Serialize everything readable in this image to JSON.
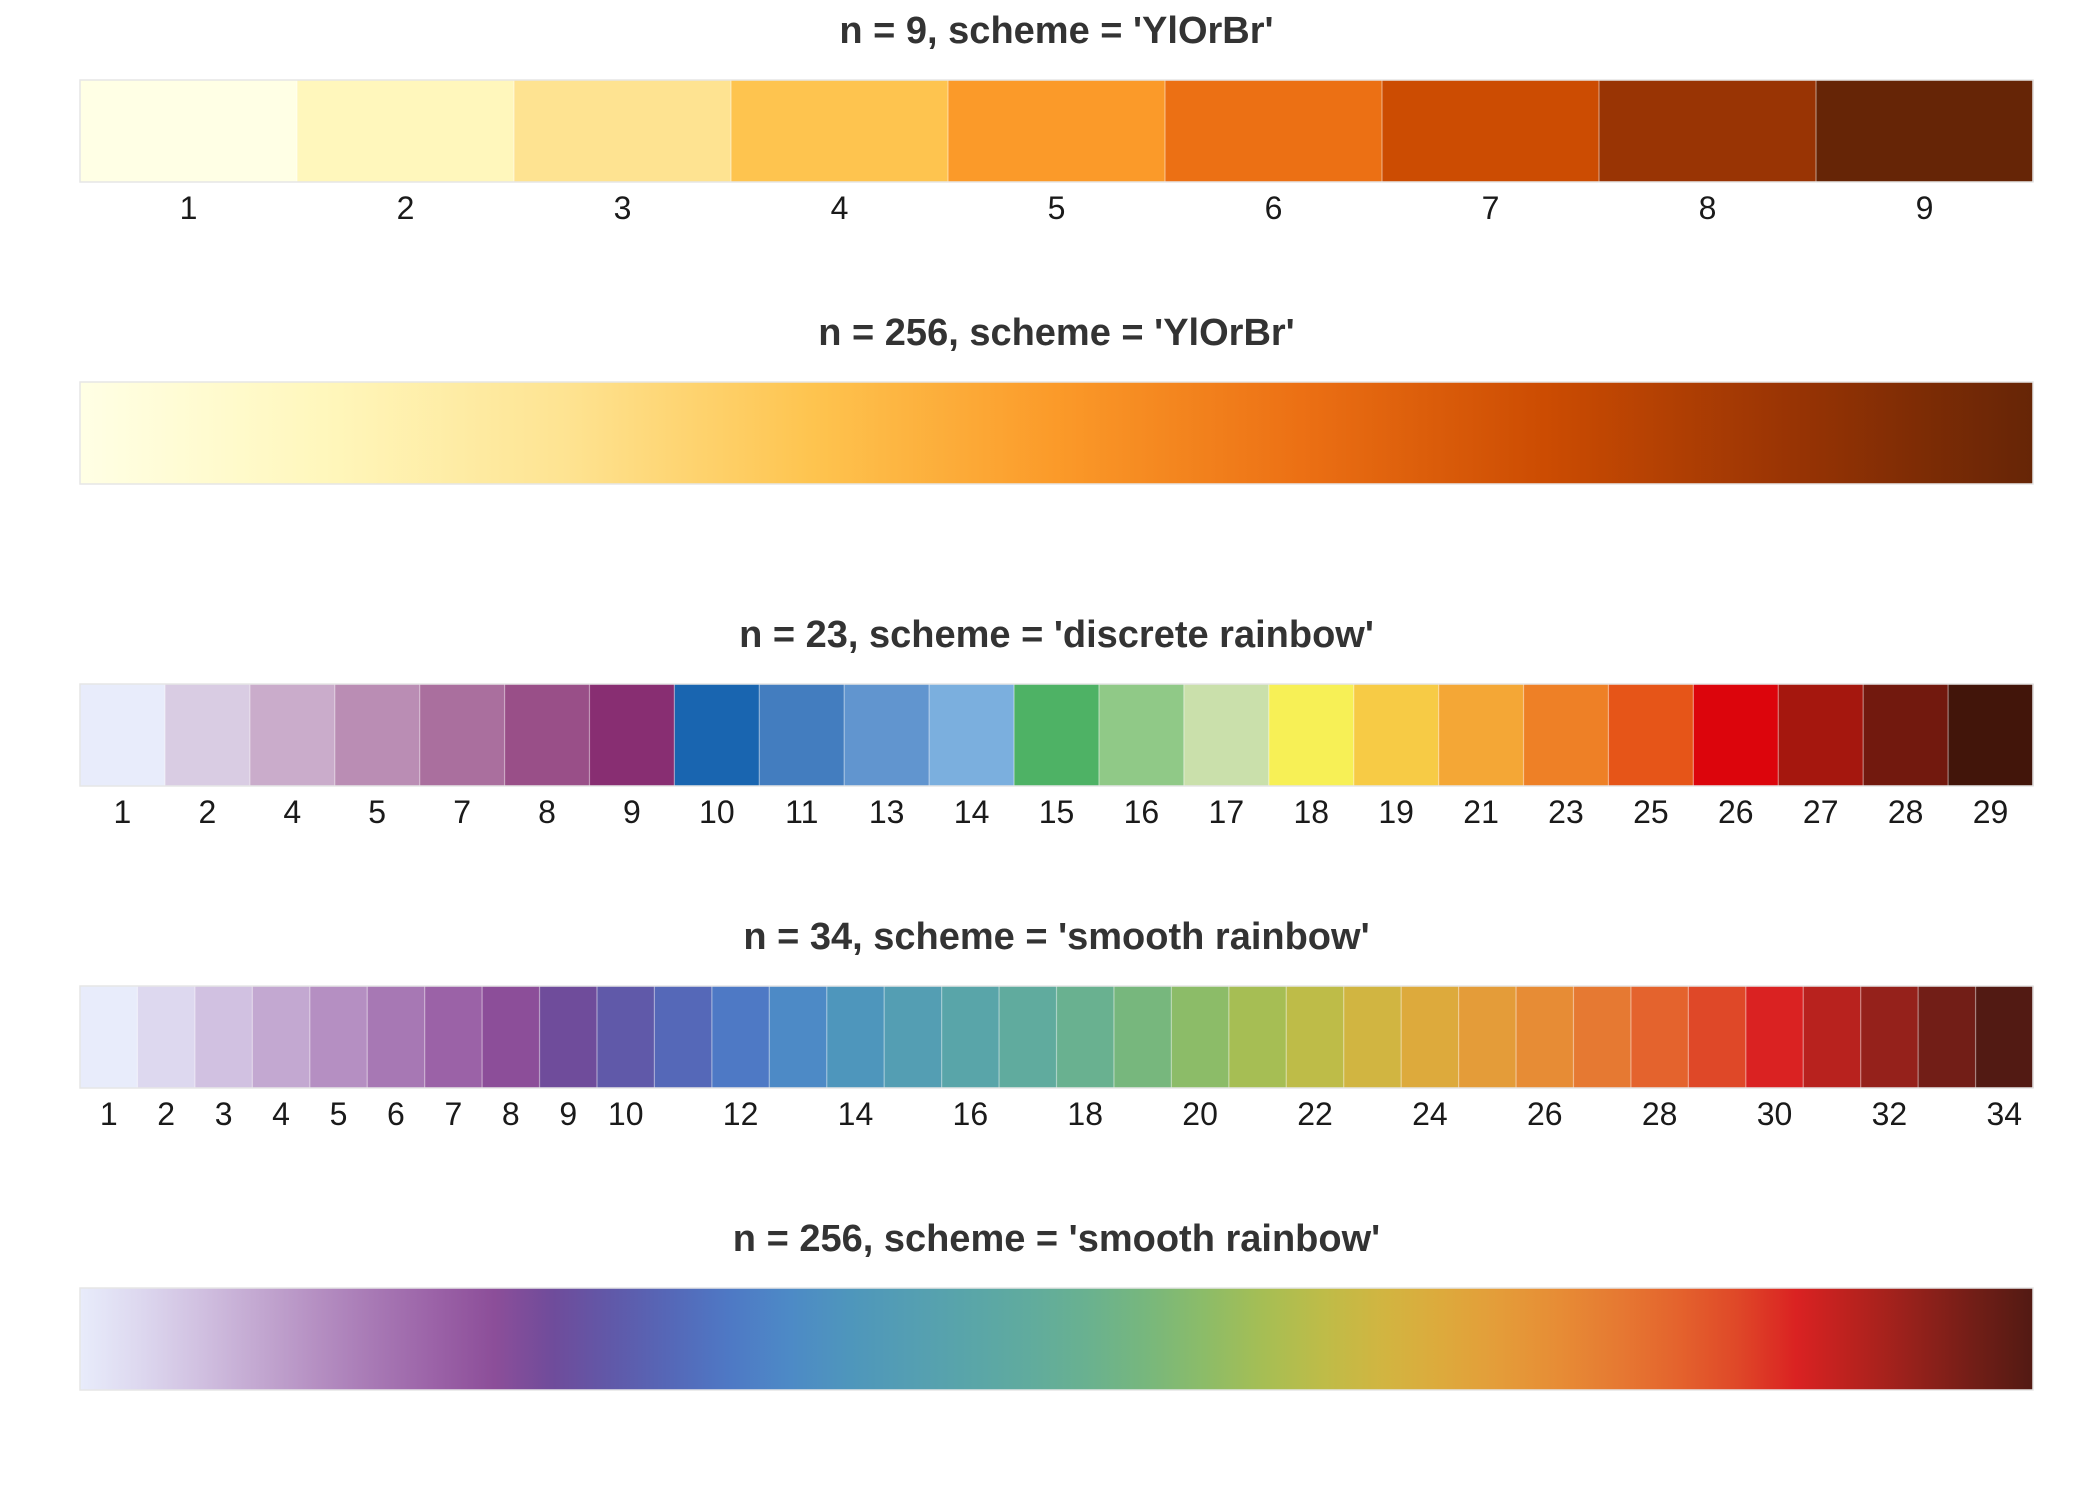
{
  "chart_data": [
    {
      "type": "heatmap",
      "title": "n = 9, scheme = 'YlOrBr'",
      "discrete": true,
      "tick_labels": [
        "1",
        "2",
        "3",
        "4",
        "5",
        "6",
        "7",
        "8",
        "9"
      ],
      "colors": [
        "#FFFFE5",
        "#FFF7BC",
        "#FEE391",
        "#FEC44F",
        "#FB9A29",
        "#EC7014",
        "#CC4C02",
        "#993404",
        "#662506"
      ]
    },
    {
      "type": "heatmap",
      "title": "n = 256, scheme = 'YlOrBr'",
      "discrete": false,
      "n": 256,
      "tick_labels": [],
      "gradient_stops": [
        "#FFFFE5",
        "#FFF7BC",
        "#FEE391",
        "#FEC44F",
        "#FB9A29",
        "#EC7014",
        "#CC4C02",
        "#993404",
        "#662506"
      ]
    },
    {
      "type": "heatmap",
      "title": "n = 23, scheme = 'discrete rainbow'",
      "discrete": true,
      "tick_labels": [
        "1",
        "2",
        "4",
        "5",
        "7",
        "8",
        "9",
        "10",
        "11",
        "13",
        "14",
        "15",
        "16",
        "17",
        "18",
        "19",
        "21",
        "23",
        "25",
        "26",
        "27",
        "28",
        "29"
      ],
      "colors": [
        "#E8ECFB",
        "#D9CCE3",
        "#CAACCB",
        "#BA8DB4",
        "#AA6F9E",
        "#994F88",
        "#882E72",
        "#1965B0",
        "#437DBF",
        "#6195CF",
        "#7BAFDE",
        "#4EB265",
        "#90C987",
        "#CAE0AB",
        "#F7F056",
        "#F7CB45",
        "#F4A736",
        "#EE8026",
        "#E65518",
        "#DC050C",
        "#A5170E",
        "#72190E",
        "#42150A"
      ]
    },
    {
      "type": "heatmap",
      "title": "n = 34, scheme = 'smooth rainbow'",
      "discrete": true,
      "tick_labels": [
        "1",
        "2",
        "3",
        "4",
        "5",
        "6",
        "7",
        "8",
        "9",
        "10",
        "",
        "12",
        "",
        "14",
        "",
        "16",
        "",
        "18",
        "",
        "20",
        "",
        "22",
        "",
        "24",
        "",
        "26",
        "",
        "28",
        "",
        "30",
        "",
        "32",
        "",
        "34"
      ],
      "colors": [
        "#E8ECFB",
        "#DDD8EF",
        "#D1C1E1",
        "#C3A8D1",
        "#B58FC2",
        "#A778B4",
        "#9B62A7",
        "#8C4E99",
        "#6F4C9B",
        "#6059A9",
        "#5568B8",
        "#4E79C5",
        "#4D8AC6",
        "#4E96BC",
        "#549EB3",
        "#59A5A9",
        "#60AB9E",
        "#69B190",
        "#77B77D",
        "#8CBC68",
        "#A6BE54",
        "#BEBC48",
        "#D1B541",
        "#DDAA3C",
        "#E49C39",
        "#E78C35",
        "#E67932",
        "#E4632D",
        "#DF4828",
        "#DA2222",
        "#B8221E",
        "#95211B",
        "#721E17",
        "#521A13"
      ]
    },
    {
      "type": "heatmap",
      "title": "n = 256, scheme = 'smooth rainbow'",
      "discrete": false,
      "n": 256,
      "tick_labels": [],
      "gradient_stops": [
        "#E8ECFB",
        "#DDD8EF",
        "#D1C1E1",
        "#C3A8D1",
        "#B58FC2",
        "#A778B4",
        "#9B62A7",
        "#8C4E99",
        "#6F4C9B",
        "#6059A9",
        "#5568B8",
        "#4E79C5",
        "#4D8AC6",
        "#4E96BC",
        "#549EB3",
        "#59A5A9",
        "#60AB9E",
        "#69B190",
        "#77B77D",
        "#8CBC68",
        "#A6BE54",
        "#BEBC48",
        "#D1B541",
        "#DDAA3C",
        "#E49C39",
        "#E78C35",
        "#E67932",
        "#E4632D",
        "#DF4828",
        "#DA2222",
        "#B8221E",
        "#95211B",
        "#721E17",
        "#521A13"
      ]
    }
  ]
}
